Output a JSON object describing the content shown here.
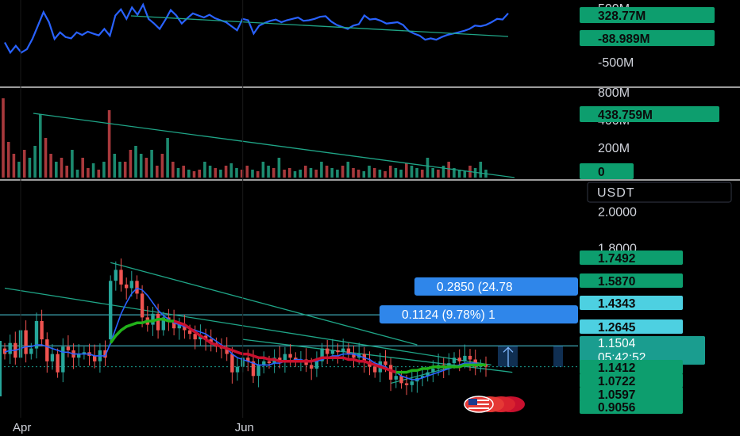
{
  "chart_data": [
    {
      "pane": "indicator",
      "type": "line",
      "line_color": "#2962ff",
      "axis_labels": [
        "500M",
        "0",
        "-500M",
        "800M"
      ],
      "y_range": [
        -600000000,
        600000000
      ],
      "last_values": [
        "328.77M",
        "-88.989M"
      ],
      "tag_color": "#0d9e6e",
      "values": [
        -100,
        -250,
        -150,
        -250,
        -200,
        -50,
        150,
        350,
        200,
        -50,
        50,
        -20,
        -40,
        50,
        10,
        60,
        30,
        5,
        100,
        0,
        300,
        390,
        250,
        420,
        310,
        460,
        250,
        180,
        100,
        230,
        380,
        300,
        180,
        260,
        330,
        300,
        270,
        310,
        260,
        230,
        200,
        140,
        80,
        250,
        230,
        30,
        150,
        190,
        220,
        240,
        200,
        230,
        250,
        270,
        220,
        230,
        250,
        280,
        290,
        210,
        160,
        130,
        100,
        150,
        170,
        300,
        240,
        250,
        220,
        180,
        190,
        200,
        160,
        70,
        30,
        0,
        -60,
        -40,
        -60,
        -20,
        10,
        30,
        50,
        70,
        100,
        150,
        140,
        160,
        200,
        250,
        240,
        330
      ],
      "trendline_from": [
        0.08,
        0.82
      ],
      "trendline_to": [
        0.93,
        -0.02
      ]
    },
    {
      "pane": "volume",
      "type": "bar",
      "axis_labels": [
        "400M",
        "200M",
        "0"
      ],
      "y_range": [
        0,
        500000000
      ],
      "last_value": "438.759M",
      "zero_tag": "0",
      "tag_color": "#0d9e6e",
      "up_color": "#1c8a6f",
      "down_color": "#a8393c",
      "values": [
        1.0,
        0.45,
        0.3,
        0.2,
        0.35,
        0.25,
        0.4,
        0.8,
        0.5,
        0.3,
        0.2,
        0.25,
        0.15,
        0.35,
        0.1,
        0.25,
        0.12,
        0.18,
        0.1,
        0.2,
        0.85,
        0.3,
        0.2,
        0.2,
        0.35,
        0.4,
        0.3,
        0.25,
        0.35,
        0.15,
        0.3,
        0.5,
        0.2,
        0.12,
        0.15,
        0.1,
        0.08,
        0.1,
        0.2,
        0.15,
        0.12,
        0.1,
        0.15,
        0.18,
        0.12,
        0.1,
        0.15,
        0.1,
        0.08,
        0.2,
        0.15,
        0.12,
        0.25,
        0.1,
        0.12,
        0.08,
        0.1,
        0.15,
        0.12,
        0.1,
        0.2,
        0.15,
        0.12,
        0.1,
        0.15,
        0.2,
        0.12,
        0.1,
        0.08,
        0.15,
        0.12,
        0.1,
        0.08,
        0.15,
        0.12,
        0.1,
        0.18,
        0.15,
        0.12,
        0.1,
        0.25,
        0.12,
        0.1,
        0.15,
        0.2,
        0.12,
        0.1,
        0.08,
        0.15,
        0.12,
        0.2,
        0.1
      ],
      "directions": [
        -1,
        -1,
        -1,
        1,
        -1,
        1,
        1,
        1,
        -1,
        -1,
        1,
        -1,
        -1,
        1,
        1,
        -1,
        -1,
        1,
        -1,
        1,
        -1,
        1,
        1,
        -1,
        -1,
        1,
        1,
        -1,
        1,
        -1,
        -1,
        1,
        -1,
        1,
        -1,
        1,
        -1,
        -1,
        1,
        1,
        -1,
        1,
        -1,
        1,
        1,
        -1,
        -1,
        1,
        -1,
        1,
        1,
        -1,
        1,
        -1,
        -1,
        1,
        1,
        -1,
        1,
        -1,
        1,
        -1,
        1,
        1,
        -1,
        1,
        -1,
        -1,
        1,
        1,
        -1,
        1,
        -1,
        -1,
        1,
        1,
        -1,
        1,
        1,
        -1,
        1,
        1,
        -1,
        1,
        -1,
        1,
        1,
        1,
        -1,
        1,
        1,
        1
      ],
      "trendline_from": [
        0.06,
        0.43
      ],
      "trendline_to": [
        0.99,
        0.0
      ]
    },
    {
      "pane": "price",
      "type": "candlestick",
      "unit": "USDT",
      "y_range": [
        0.88,
        2.15
      ],
      "axis_labels": [
        "2.0000",
        "1.8000"
      ],
      "tick_values": [
        2.0,
        1.8
      ],
      "up_color": "#26a69a",
      "down_color": "#ef5350",
      "close": [
        1.22,
        1.28,
        1.2,
        1.35,
        1.22,
        1.25,
        1.4,
        1.3,
        1.18,
        1.22,
        1.12,
        1.26,
        1.24,
        1.2,
        1.22,
        1.23,
        1.21,
        1.18,
        1.24,
        1.2,
        1.62,
        1.68,
        1.6,
        1.58,
        1.62,
        1.55,
        1.42,
        1.38,
        1.44,
        1.35,
        1.42,
        1.4,
        1.36,
        1.38,
        1.35,
        1.33,
        1.3,
        1.32,
        1.3,
        1.28,
        1.26,
        1.25,
        1.22,
        1.12,
        1.15,
        1.2,
        1.18,
        1.1,
        1.16,
        1.18,
        1.17,
        1.2,
        1.18,
        1.22,
        1.2,
        1.18,
        1.19,
        1.16,
        1.14,
        1.18,
        1.25,
        1.22,
        1.24,
        1.23,
        1.25,
        1.22,
        1.2,
        1.22,
        1.18,
        1.15,
        1.12,
        1.18,
        1.16,
        1.08,
        1.1,
        1.06,
        1.05,
        1.07,
        1.09,
        1.1,
        1.12,
        1.14,
        1.16,
        1.15,
        1.17,
        1.2,
        1.18,
        1.21,
        1.19,
        1.15,
        1.16,
        1.15
      ],
      "open": [
        1.25,
        1.22,
        1.28,
        1.2,
        1.35,
        1.22,
        1.25,
        1.4,
        1.3,
        1.18,
        1.22,
        1.12,
        1.26,
        1.24,
        1.2,
        1.22,
        1.23,
        1.21,
        1.18,
        1.24,
        1.3,
        1.62,
        1.68,
        1.6,
        1.58,
        1.62,
        1.55,
        1.42,
        1.38,
        1.44,
        1.35,
        1.42,
        1.4,
        1.36,
        1.38,
        1.35,
        1.33,
        1.3,
        1.32,
        1.3,
        1.28,
        1.26,
        1.25,
        1.22,
        1.12,
        1.15,
        1.2,
        1.18,
        1.1,
        1.16,
        1.18,
        1.17,
        1.2,
        1.18,
        1.22,
        1.2,
        1.18,
        1.19,
        1.16,
        1.14,
        1.18,
        1.25,
        1.22,
        1.24,
        1.23,
        1.25,
        1.22,
        1.2,
        1.22,
        1.18,
        1.15,
        1.12,
        1.18,
        1.16,
        1.08,
        1.1,
        1.06,
        1.05,
        1.07,
        1.09,
        1.1,
        1.12,
        1.14,
        1.16,
        1.15,
        1.17,
        1.2,
        1.18,
        1.21,
        1.19,
        1.15,
        1.16
      ],
      "sma_fast_color": "#2962ff",
      "sma_fast": [
        1.23,
        1.24,
        1.24,
        1.25,
        1.26,
        1.26,
        1.27,
        1.27,
        1.26,
        1.25,
        1.24,
        1.23,
        1.23,
        1.22,
        1.22,
        1.22,
        1.22,
        1.21,
        1.21,
        1.21,
        1.28,
        1.36,
        1.44,
        1.5,
        1.55,
        1.58,
        1.57,
        1.54,
        1.5,
        1.46,
        1.43,
        1.41,
        1.39,
        1.38,
        1.37,
        1.36,
        1.35,
        1.34,
        1.33,
        1.31,
        1.29,
        1.27,
        1.25,
        1.22,
        1.2,
        1.19,
        1.18,
        1.17,
        1.16,
        1.16,
        1.16,
        1.17,
        1.17,
        1.18,
        1.18,
        1.19,
        1.19,
        1.18,
        1.18,
        1.18,
        1.19,
        1.2,
        1.21,
        1.21,
        1.22,
        1.22,
        1.22,
        1.21,
        1.2,
        1.19,
        1.17,
        1.16,
        1.15,
        1.13,
        1.12,
        1.1,
        1.09,
        1.08,
        1.08,
        1.09,
        1.1,
        1.11,
        1.12,
        1.13,
        1.14,
        1.15,
        1.16,
        1.17,
        1.17,
        1.17,
        1.16,
        1.16
      ],
      "ema_slow": [
        null,
        null,
        null,
        null,
        null,
        null,
        null,
        null,
        null,
        null,
        null,
        null,
        null,
        null,
        null,
        null,
        null,
        null,
        null,
        null,
        1.28,
        1.32,
        1.35,
        1.37,
        1.38,
        1.39,
        1.39,
        1.4,
        1.4,
        1.41,
        1.41,
        1.4,
        1.4,
        1.39,
        1.38,
        1.36,
        1.34,
        1.32,
        1.3,
        1.28,
        1.27,
        1.26,
        1.25,
        1.24,
        1.23,
        1.22,
        1.22,
        1.21,
        1.2,
        1.2,
        1.19,
        1.19,
        1.18,
        1.18,
        1.18,
        1.18,
        1.18,
        1.18,
        1.18,
        1.19,
        1.2,
        1.2,
        1.2,
        1.2,
        1.2,
        1.19,
        1.19,
        1.18,
        1.18,
        1.17,
        1.16,
        1.15,
        1.14,
        1.13,
        1.12,
        1.12,
        1.12,
        1.13,
        1.13,
        1.14,
        1.14,
        1.15,
        1.15,
        1.15,
        1.15,
        1.15,
        1.15,
        1.16,
        1.16,
        1.16,
        1.16,
        1.16
      ],
      "ema_up_color": "#22b11a",
      "ema_down_color": "#c8102e",
      "ema_down_range": [
        32,
        74
      ],
      "horizontal_levels": [
        1.4343,
        1.2645
      ],
      "current_price_line": 1.1504,
      "trendlines": [
        {
          "from": [
            0,
            1.58
          ],
          "to": [
            92,
            1.16
          ]
        },
        {
          "from": [
            20,
            1.72
          ],
          "to": [
            78,
            1.27
          ]
        },
        {
          "from": [
            45,
            1.3
          ],
          "to": [
            96,
            1.12
          ]
        },
        {
          "from": [
            73,
            1.06
          ],
          "to": [
            86,
            1.16
          ]
        }
      ],
      "price_tags": [
        {
          "value": "1.7492",
          "y": 1.7492,
          "color": "#0d9e6e"
        },
        {
          "value": "1.5870",
          "y": 1.587,
          "color": "#0d9e6e"
        },
        {
          "value": "1.4343",
          "y": 1.4343,
          "color": "#4dd0e1"
        },
        {
          "value": "1.2645",
          "y": 1.2645,
          "color": "#4dd0e1"
        },
        {
          "value": "1.1504",
          "y": 1.1504,
          "color": "#1a9d8f"
        },
        {
          "value": "1.1412",
          "y": 1.1412,
          "color": "#0d9e6e"
        },
        {
          "value": "1.0722",
          "y": 1.0722,
          "color": "#0d9e6e"
        },
        {
          "value": "1.0597",
          "y": 1.0597,
          "color": "#0d9e6e"
        },
        {
          "value": "0.9056",
          "y": 0.9056,
          "color": "#0d9e6e"
        }
      ],
      "countdown": "05:42:52",
      "measures": [
        {
          "text": "0.2850 (24.78",
          "y": 1.587,
          "color": "#2f86ea"
        },
        {
          "text": "0.1124 (9.78%) 1",
          "y": 1.4343,
          "color": "#2f86ea"
        }
      ],
      "x_labels": [
        "Apr",
        "Jun"
      ],
      "x_label_index": [
        3,
        45
      ]
    }
  ]
}
